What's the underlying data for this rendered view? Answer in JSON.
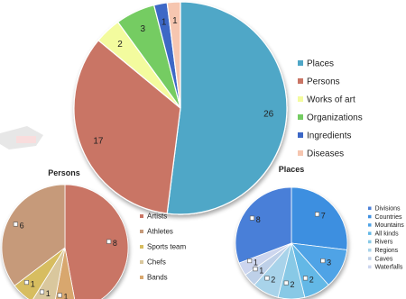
{
  "chart_data": [
    {
      "type": "pie",
      "categories": [
        "Places",
        "Persons",
        "Works of art",
        "Organizations",
        "Ingredients",
        "Diseases"
      ],
      "values": [
        26,
        17,
        2,
        3,
        1,
        1
      ],
      "colors": [
        "#4fa7c7",
        "#c97565",
        "#f3fb9e",
        "#74cc62",
        "#3c67c6",
        "#f6c6b0"
      ],
      "legend": "right"
    },
    {
      "type": "pie",
      "title": "Persons",
      "categories": [
        "Artists",
        "Athletes",
        "Sports team",
        "Chefs",
        "Bands"
      ],
      "values": [
        8,
        6,
        1,
        1,
        1
      ],
      "colors": [
        "#c97565",
        "#c69a7a",
        "#d7bd60",
        "#d9c79d",
        "#d8a76e"
      ],
      "legend": "right"
    },
    {
      "type": "pie",
      "title": "Places",
      "categories": [
        "Divisions",
        "Countries",
        "Mountains",
        "All kinds",
        "Rivers",
        "Regions",
        "Caves",
        "Waterfalls"
      ],
      "values": [
        8,
        7,
        3,
        2,
        2,
        2,
        1,
        1
      ],
      "colors": [
        "#4a7fd8",
        "#3d8fe0",
        "#4fa3e6",
        "#63b8e6",
        "#88c9e6",
        "#a8d3ea",
        "#bed0e8",
        "#ccd5ee"
      ],
      "legend": "right"
    }
  ]
}
